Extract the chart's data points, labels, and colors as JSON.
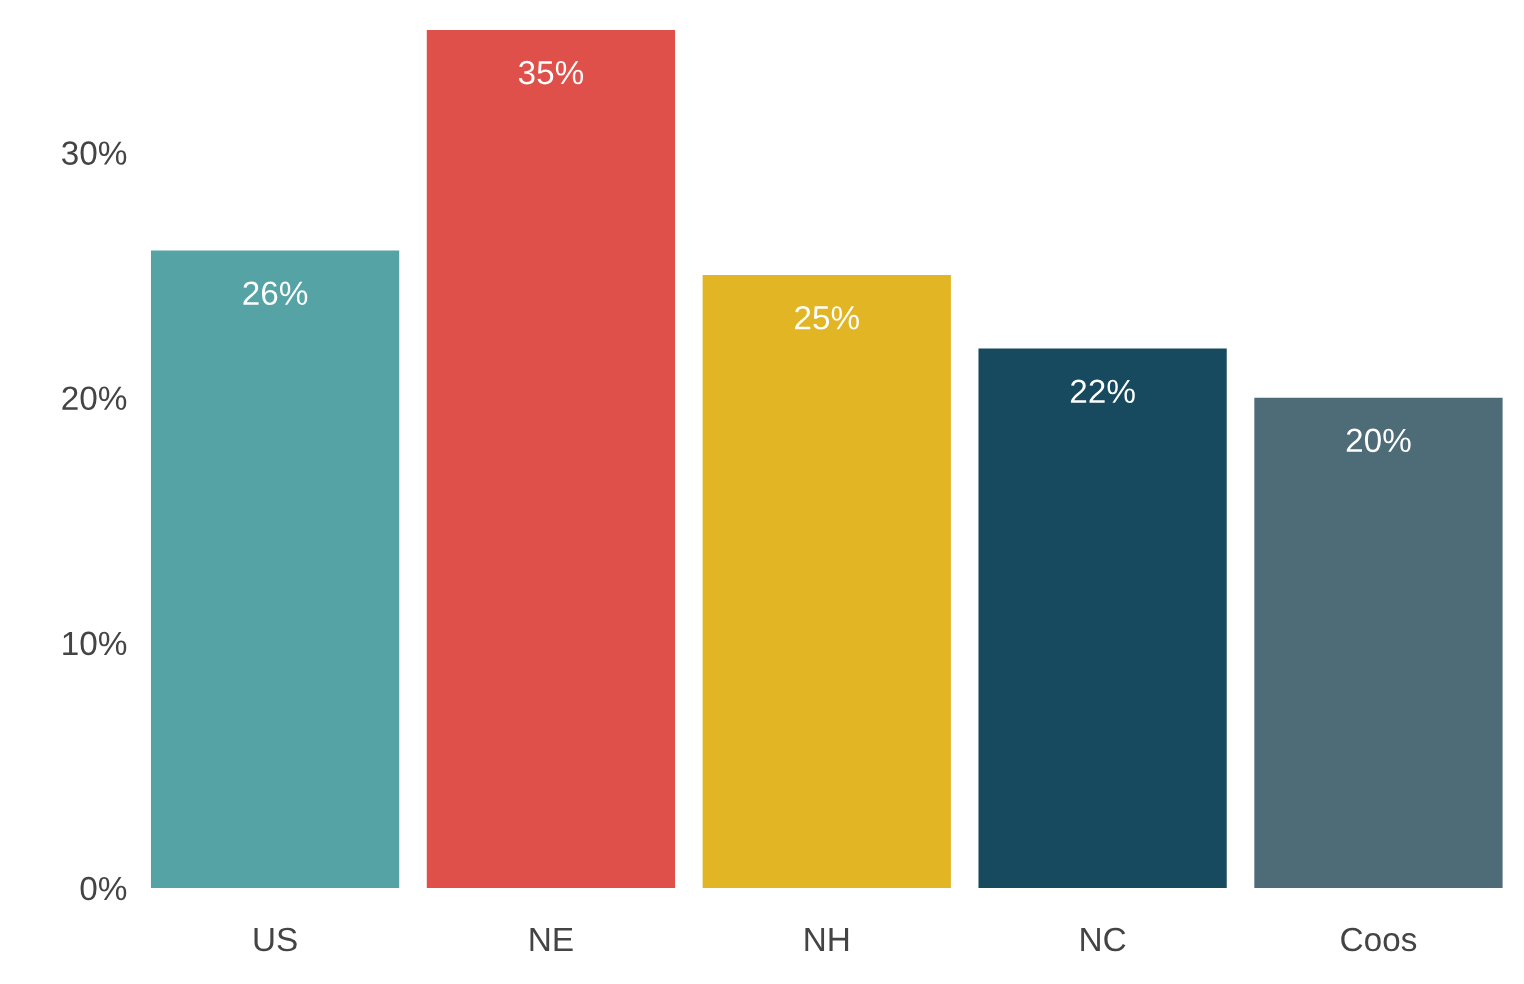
{
  "chart_data": {
    "type": "bar",
    "categories": [
      "US",
      "NE",
      "NH",
      "NC",
      "Coos"
    ],
    "values": [
      26,
      35,
      25,
      22,
      20
    ],
    "colors": [
      "#56a3a6",
      "#e0504a",
      "#e1b523",
      "#174a5f",
      "#4e6b78"
    ],
    "value_labels": [
      "26%",
      "35%",
      "25%",
      "22%",
      "20%"
    ],
    "ylim": [
      0,
      35
    ],
    "yticks": [
      {
        "value": 0,
        "label": "0%"
      },
      {
        "value": 10,
        "label": "10%"
      },
      {
        "value": 20,
        "label": "20%"
      },
      {
        "value": 30,
        "label": "30%"
      }
    ],
    "grid": false,
    "legend": false
  }
}
